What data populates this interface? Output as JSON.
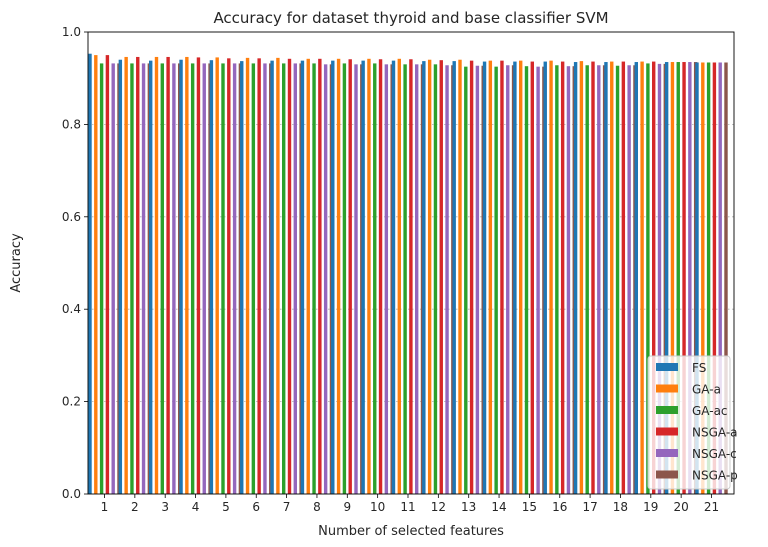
{
  "chart_data": {
    "type": "bar",
    "title": "Accuracy for dataset thyroid and base classifier SVM",
    "xlabel": "Number of selected features",
    "ylabel": "Accuracy",
    "ylim": [
      0,
      1.0
    ],
    "yticks": [
      "0.0",
      "0.2",
      "0.4",
      "0.6",
      "0.8",
      "1.0"
    ],
    "grid": "horizontal dotted",
    "legend_position": "bottom-right",
    "categories": [
      "1",
      "2",
      "3",
      "4",
      "5",
      "6",
      "7",
      "8",
      "9",
      "10",
      "11",
      "12",
      "13",
      "14",
      "15",
      "16",
      "17",
      "18",
      "19",
      "20",
      "21"
    ],
    "series": [
      {
        "name": "FS",
        "color": "#1f77b4",
        "values": [
          0.953,
          0.94,
          0.938,
          0.94,
          0.939,
          0.937,
          0.938,
          0.938,
          0.938,
          0.938,
          0.938,
          0.937,
          0.937,
          0.936,
          0.936,
          0.936,
          0.935,
          0.935,
          0.935,
          0.935,
          0.934
        ]
      },
      {
        "name": "GA-a",
        "color": "#ff7f0e",
        "values": [
          0.95,
          0.946,
          0.946,
          0.946,
          0.945,
          0.944,
          0.944,
          0.942,
          0.942,
          0.942,
          0.942,
          0.94,
          0.94,
          0.938,
          0.938,
          0.938,
          0.937,
          0.936,
          0.936,
          0.935,
          0.934
        ]
      },
      {
        "name": "GA-ac",
        "color": "#2ca02c",
        "values": [
          0.932,
          0.932,
          0.932,
          0.932,
          0.932,
          0.932,
          0.932,
          0.932,
          0.932,
          0.932,
          0.93,
          0.93,
          0.925,
          0.925,
          0.926,
          0.928,
          0.928,
          0.927,
          0.932,
          0.935,
          0.934
        ]
      },
      {
        "name": "NSGA-a",
        "color": "#d62728",
        "values": [
          0.95,
          0.946,
          0.946,
          0.945,
          0.943,
          0.943,
          0.942,
          0.942,
          0.941,
          0.941,
          0.941,
          0.939,
          0.938,
          0.938,
          0.936,
          0.936,
          0.936,
          0.936,
          0.936,
          0.935,
          0.934
        ]
      },
      {
        "name": "NSGA-c",
        "color": "#9467bd",
        "values": [
          0.932,
          0.932,
          0.932,
          0.932,
          0.932,
          0.932,
          0.932,
          0.93,
          0.93,
          0.93,
          0.93,
          0.928,
          0.927,
          0.928,
          0.925,
          0.926,
          0.928,
          0.928,
          0.931,
          0.935,
          0.934
        ]
      },
      {
        "name": "NSGA-p",
        "color": "#8c564b",
        "values": [
          0.932,
          0.932,
          0.932,
          0.932,
          0.932,
          0.932,
          0.932,
          0.93,
          0.93,
          0.93,
          0.93,
          0.928,
          0.927,
          0.928,
          0.925,
          0.926,
          0.928,
          0.928,
          0.931,
          0.935,
          0.934
        ]
      }
    ]
  }
}
